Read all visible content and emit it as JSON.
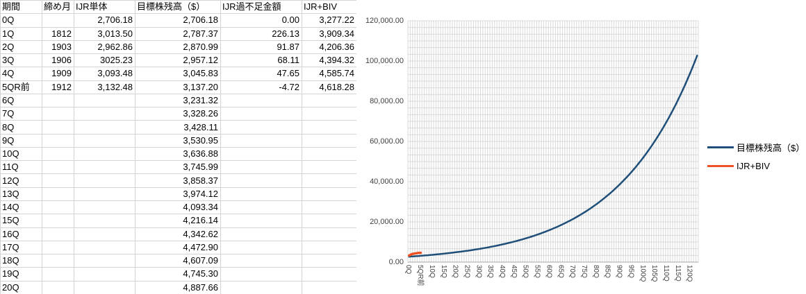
{
  "table": {
    "headers": [
      "期間",
      "締め月",
      "IJR単体",
      "目標株残高（$）",
      "IJR過不足金額",
      "IJR+BIV"
    ],
    "rows": [
      [
        "0Q",
        "",
        "2,706.18",
        "2,706.18",
        "0.00",
        "3,277.22"
      ],
      [
        "1Q",
        "1812",
        "3,013.50",
        "2,787.37",
        "226.13",
        "3,909.34"
      ],
      [
        "2Q",
        "1903",
        "2,962.86",
        "2,870.99",
        "91.87",
        "4,206.36"
      ],
      [
        "3Q",
        "1906",
        "3025.23",
        "2,957.12",
        "68.11",
        "4,394.32"
      ],
      [
        "4Q",
        "1909",
        "3,093.48",
        "3,045.83",
        "47.65",
        "4,585.74"
      ],
      [
        "5QR前",
        "1912",
        "3,132.48",
        "3,137.20",
        "-4.72",
        "4,618.28"
      ],
      [
        "6Q",
        "",
        "",
        "3,231.32",
        "",
        ""
      ],
      [
        "7Q",
        "",
        "",
        "3,328.26",
        "",
        ""
      ],
      [
        "8Q",
        "",
        "",
        "3,428.11",
        "",
        ""
      ],
      [
        "9Q",
        "",
        "",
        "3,530.95",
        "",
        ""
      ],
      [
        "10Q",
        "",
        "",
        "3,636.88",
        "",
        ""
      ],
      [
        "11Q",
        "",
        "",
        "3,745.99",
        "",
        ""
      ],
      [
        "12Q",
        "",
        "",
        "3,858.37",
        "",
        ""
      ],
      [
        "13Q",
        "",
        "",
        "3,974.12",
        "",
        ""
      ],
      [
        "14Q",
        "",
        "",
        "4,093.34",
        "",
        ""
      ],
      [
        "15Q",
        "",
        "",
        "4,216.14",
        "",
        ""
      ],
      [
        "16Q",
        "",
        "",
        "4,342.62",
        "",
        ""
      ],
      [
        "17Q",
        "",
        "",
        "4,472.90",
        "",
        ""
      ],
      [
        "18Q",
        "",
        "",
        "4,607.09",
        "",
        ""
      ],
      [
        "19Q",
        "",
        "",
        "4,745.30",
        "",
        ""
      ],
      [
        "20Q",
        "",
        "",
        "4,887.66",
        "",
        ""
      ]
    ]
  },
  "chart_data": {
    "type": "line",
    "title": "",
    "xlabel": "",
    "ylabel": "",
    "ylim": [
      0,
      120000
    ],
    "y_major_unit": 20000,
    "grid": "minor",
    "legend_position": "right",
    "y_tick_labels": [
      "0.00",
      "20,000.00",
      "40,000.00",
      "60,000.00",
      "80,000.00",
      "100,000.00",
      "120,000.00"
    ],
    "x_tick_labels": [
      "0Q",
      "5QR前",
      "10Q",
      "15Q",
      "20Q",
      "25Q",
      "30Q",
      "35Q",
      "40Q",
      "45Q",
      "50Q",
      "55Q",
      "60Q",
      "65Q",
      "70Q",
      "75Q",
      "80Q",
      "85Q",
      "90Q",
      "95Q",
      "100Q",
      "105Q",
      "110Q",
      "115Q",
      "120Q"
    ],
    "x_tick_step": 5,
    "series": [
      {
        "name": "目標株残高（$）",
        "color": "#1f4e79",
        "start_index": 0,
        "values": [
          2706.18,
          2787.37,
          2870.99,
          2957.12,
          3045.83,
          3137.2,
          3231.32,
          3328.26,
          3428.11,
          3530.95,
          3636.88,
          3745.99,
          3858.37,
          3974.12,
          4093.34,
          4216.14,
          4342.62,
          4472.9,
          4607.09,
          4745.3,
          4887.66,
          5034.29,
          5185.32,
          5340.88,
          5501.11,
          5666.14,
          5836.12,
          6011.2,
          6191.54,
          6377.29,
          6568.61,
          6765.67,
          6968.64,
          7177.7,
          7393.03,
          7614.82,
          7843.26,
          8078.56,
          8320.92,
          8570.55,
          8827.67,
          9092.5,
          9365.28,
          9646.24,
          9935.63,
          10233.7,
          10540.71,
          10856.93,
          11182.64,
          11518.12,
          11863.66,
          12219.57,
          12586.16,
          12963.74,
          13352.65,
          13753.23,
          14165.83,
          14590.8,
          15028.52,
          15479.38,
          15943.76,
          16422.07,
          16914.73,
          17422.17,
          17944.84,
          18483.19,
          19037.69,
          19608.82,
          20197.08,
          20802.99,
          21427.08,
          22069.89,
          22731.99,
          23413.95,
          24116.37,
          24839.86,
          25585.06,
          26352.61,
          27143.19,
          27957.49,
          28796.21,
          29660.1,
          30549.9,
          31466.4,
          32410.39,
          33382.7,
          34384.18,
          35415.71,
          36478.18,
          37572.53,
          38699.71,
          39860.7,
          41056.52,
          42288.22,
          43556.87,
          44863.58,
          46209.49,
          47595.77,
          49023.64,
          50494.35,
          52009.18,
          53569.46,
          55176.54,
          56831.84,
          58536.8,
          60292.9,
          62101.69,
          63964.74,
          65883.68,
          67860.19,
          69896.0,
          71992.88,
          74152.67,
          76377.25,
          78668.57,
          81028.63,
          83459.49,
          85963.27,
          88542.17,
          91198.44,
          93934.39,
          96752.42,
          99654.99,
          102644.64
        ]
      },
      {
        "name": "IJR+BIV",
        "color": "#ed5226",
        "start_index": 0,
        "values": [
          3277.22,
          3909.34,
          4206.36,
          4394.32,
          4585.74,
          4618.28
        ]
      }
    ],
    "colors": {
      "gridline": "#d9d9d9",
      "axis_line": "#a6a6a6",
      "axis_text": "#404040"
    }
  }
}
